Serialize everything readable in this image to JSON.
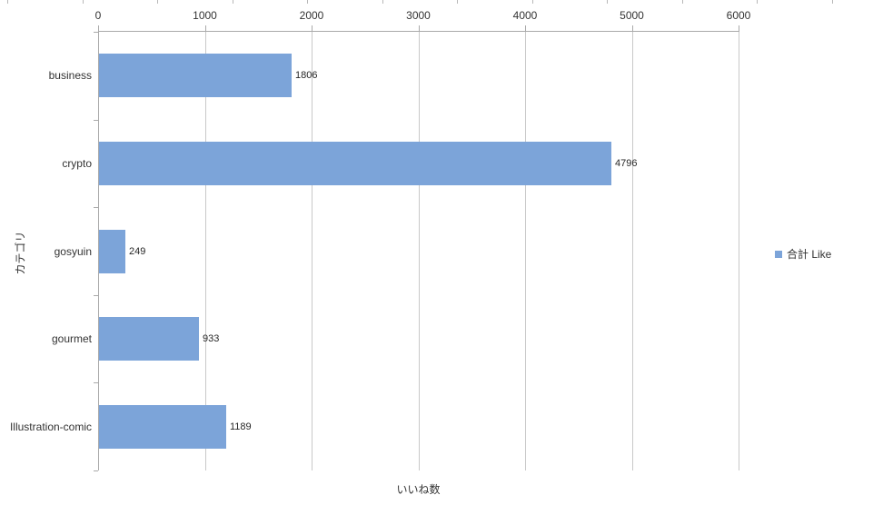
{
  "chart_data": {
    "type": "bar",
    "orientation": "horizontal",
    "title": "",
    "categories": [
      "business",
      "crypto",
      "gosyuin",
      "gourmet",
      "Illustration-comic"
    ],
    "series": [
      {
        "name": "合計 Like",
        "values": [
          1806,
          4796,
          249,
          933,
          1189
        ]
      }
    ],
    "data_labels": [
      "1806",
      "4796",
      "249",
      "933",
      "1189"
    ],
    "xlabel": "いいね数",
    "ylabel": "カテゴリ",
    "xlim": [
      0,
      6000
    ],
    "x_ticks": [
      0,
      1000,
      2000,
      3000,
      4000,
      5000,
      6000
    ],
    "x_tick_labels": [
      "0",
      "1000",
      "2000",
      "3000",
      "4000",
      "5000",
      "6000"
    ],
    "grid": true,
    "value_axis_position": "top",
    "legend_position": "right",
    "bar_color": "#7ca4d9",
    "gridline_color": "#c9c9c9",
    "axis_line_color": "#a9a9a9",
    "text_color": "#333333"
  },
  "legend": {
    "label": "合計 Like",
    "swatch_color": "#7ca4d9"
  },
  "axes": {
    "x_title": "いいね数",
    "y_title": "カテゴリ"
  }
}
